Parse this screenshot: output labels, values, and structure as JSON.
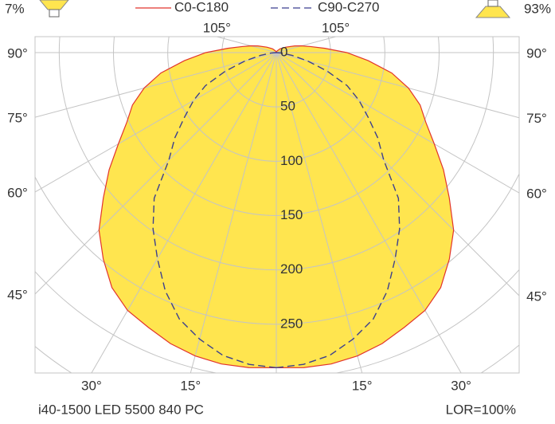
{
  "chart_data": {
    "type": "polar",
    "upward_light": "7%",
    "downward_light": "93%",
    "footer_left": "i40-1500 LED 5500 840 PC",
    "footer_right": "LOR=100%",
    "rlim": [
      0,
      300
    ],
    "rticks": [
      0,
      50,
      100,
      150,
      200,
      250
    ],
    "grid_circles": [
      50,
      100,
      150,
      200,
      250,
      300,
      350
    ],
    "angle_ticks": [
      {
        "value": 15,
        "label": "15°"
      },
      {
        "value": 30,
        "label": "30°"
      },
      {
        "value": 45,
        "label": "45°"
      },
      {
        "value": 60,
        "label": "60°"
      },
      {
        "value": 75,
        "label": "75°"
      },
      {
        "value": 90,
        "label": "90°"
      },
      {
        "value": 105,
        "label": "105°"
      }
    ],
    "series": [
      {
        "name": "C0-C180",
        "color": "#e2342c",
        "fill": "#ffe54f",
        "x": [
          0,
          5,
          10,
          15,
          20,
          25,
          30,
          35,
          40,
          45,
          50,
          55,
          60,
          65,
          70,
          75,
          80,
          85,
          90,
          95,
          100,
          105,
          110,
          120,
          135,
          150,
          165,
          180
        ],
        "values": [
          290,
          291,
          291,
          289,
          285,
          279,
          274,
          264,
          248,
          231,
          208,
          188,
          168,
          152,
          141,
          126,
          108,
          85,
          65,
          45,
          32,
          24,
          18,
          10,
          5,
          2,
          1,
          0
        ]
      },
      {
        "name": "C90-C270",
        "color": "#3b3f8f",
        "x": [
          0,
          5,
          10,
          15,
          20,
          25,
          30,
          35,
          40,
          45,
          50,
          55,
          60,
          65,
          70,
          75,
          80,
          85,
          90
        ],
        "values": [
          290,
          288,
          283,
          273,
          261,
          242,
          219,
          198,
          175,
          140,
          122,
          103,
          88,
          72,
          50,
          30,
          15,
          5,
          0
        ]
      }
    ]
  }
}
